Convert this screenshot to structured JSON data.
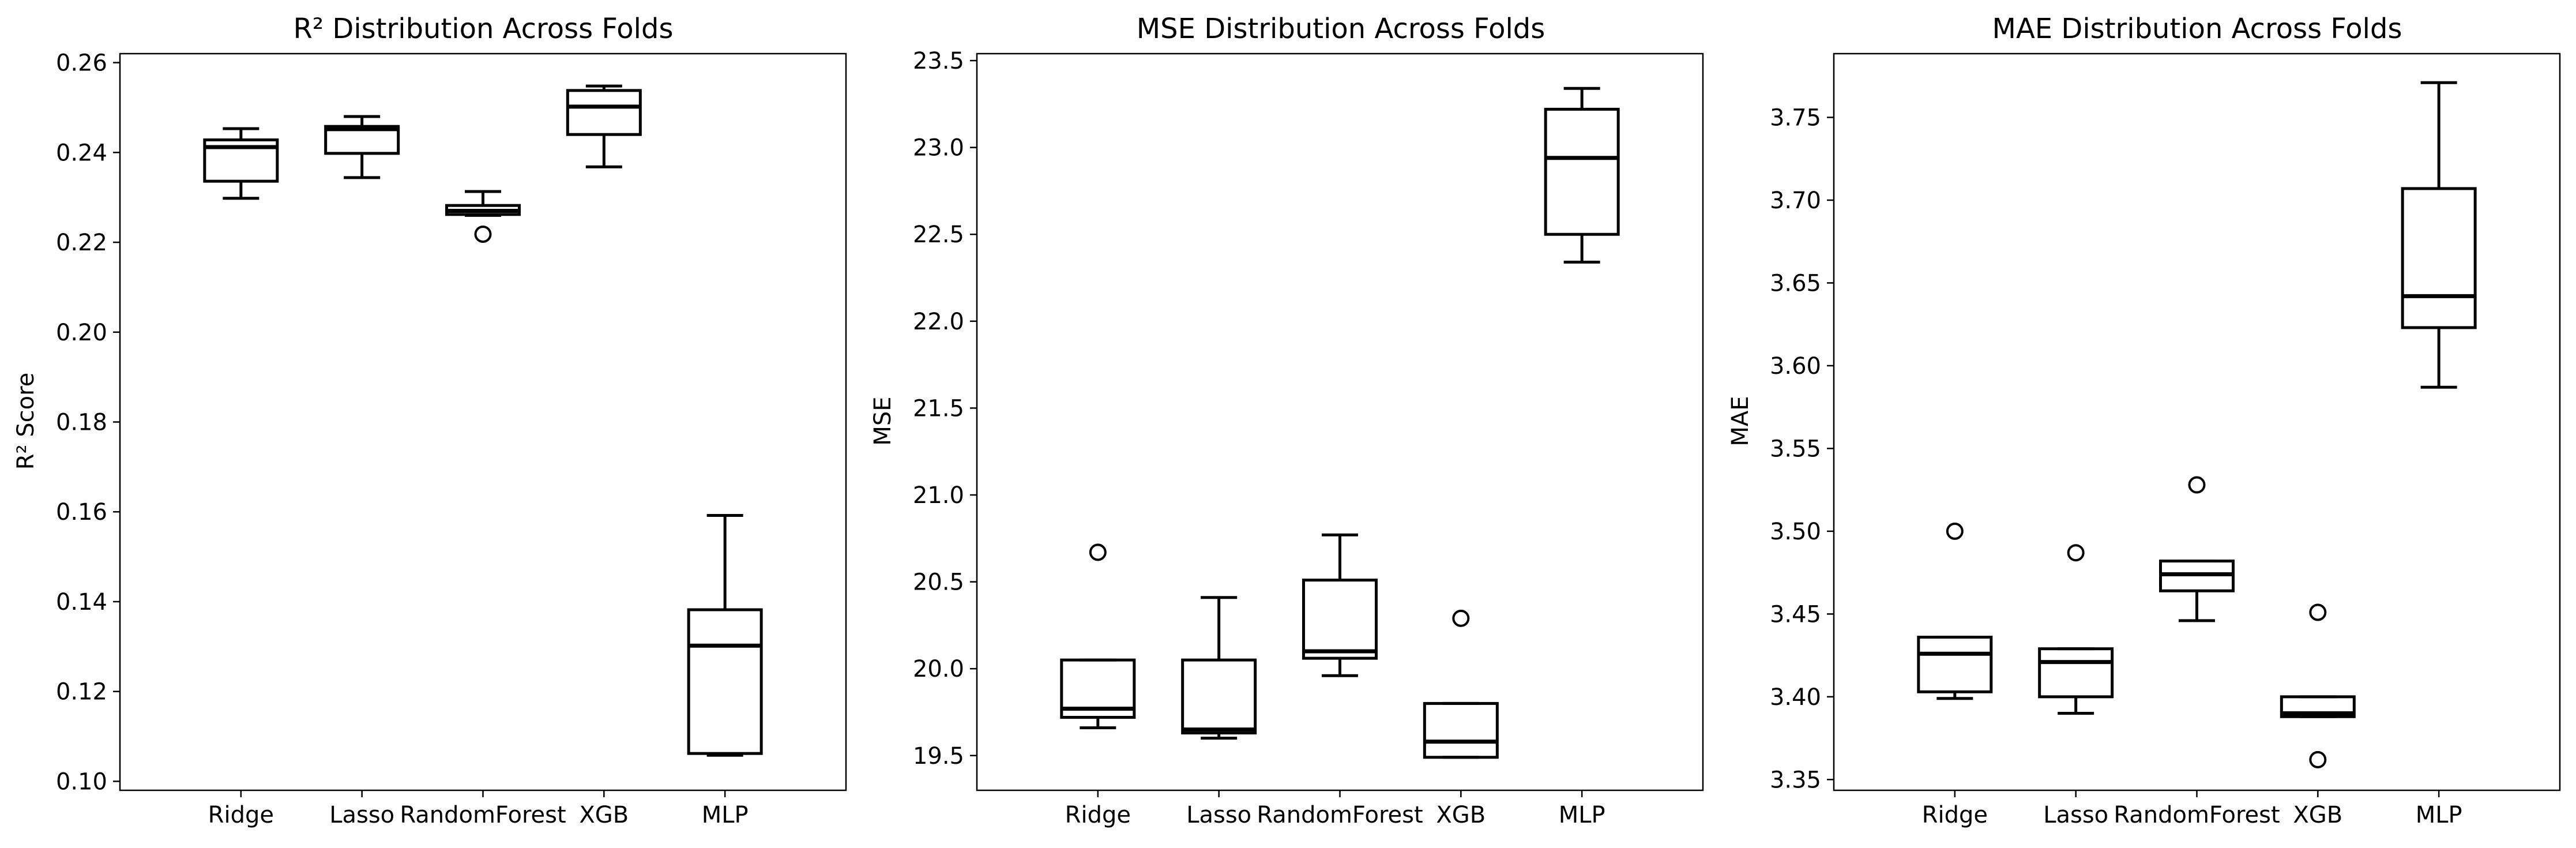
{
  "chart_data": [
    {
      "type": "box",
      "title": "R² Distribution Across Folds",
      "xlabel": "",
      "ylabel": "R² Score",
      "categories": [
        "Ridge",
        "Lasso",
        "RandomForest",
        "XGB",
        "MLP"
      ],
      "ylim": [
        0.098,
        0.262
      ],
      "yticks": [
        "0.10",
        "0.12",
        "0.14",
        "0.16",
        "0.18",
        "0.20",
        "0.22",
        "0.24",
        "0.26"
      ],
      "grid": false,
      "boxes": [
        {
          "whislo": 0.2298,
          "q1": 0.2336,
          "med": 0.2412,
          "q3": 0.2428,
          "whishi": 0.2453,
          "fliers": []
        },
        {
          "whislo": 0.2344,
          "q1": 0.2398,
          "med": 0.2452,
          "q3": 0.2458,
          "whishi": 0.248,
          "fliers": []
        },
        {
          "whislo": 0.226,
          "q1": 0.2262,
          "med": 0.227,
          "q3": 0.2282,
          "whishi": 0.2313,
          "fliers": [
            0.2218
          ]
        },
        {
          "whislo": 0.2368,
          "q1": 0.244,
          "med": 0.2502,
          "q3": 0.2538,
          "whishi": 0.2548,
          "fliers": []
        },
        {
          "whislo": 0.1058,
          "q1": 0.1062,
          "med": 0.1302,
          "q3": 0.1382,
          "whishi": 0.1592,
          "fliers": []
        }
      ]
    },
    {
      "type": "box",
      "title": "MSE Distribution Across Folds",
      "xlabel": "",
      "ylabel": "MSE",
      "categories": [
        "Ridge",
        "Lasso",
        "RandomForest",
        "XGB",
        "MLP"
      ],
      "ylim": [
        19.3,
        23.54
      ],
      "yticks": [
        "19.5",
        "20.0",
        "20.5",
        "21.0",
        "21.5",
        "22.0",
        "22.5",
        "23.0",
        "23.5"
      ],
      "grid": false,
      "boxes": [
        {
          "whislo": 19.66,
          "q1": 19.72,
          "med": 19.77,
          "q3": 20.05,
          "whishi": 20.05,
          "fliers": [
            20.67
          ]
        },
        {
          "whislo": 19.6,
          "q1": 19.63,
          "med": 19.65,
          "q3": 20.05,
          "whishi": 20.41,
          "fliers": []
        },
        {
          "whislo": 19.96,
          "q1": 20.06,
          "med": 20.1,
          "q3": 20.51,
          "whishi": 20.77,
          "fliers": []
        },
        {
          "whislo": 19.49,
          "q1": 19.49,
          "med": 19.58,
          "q3": 19.8,
          "whishi": 19.8,
          "fliers": [
            20.29
          ]
        },
        {
          "whislo": 22.34,
          "q1": 22.5,
          "med": 22.94,
          "q3": 23.22,
          "whishi": 23.34,
          "fliers": []
        }
      ]
    },
    {
      "type": "box",
      "title": "MAE Distribution Across Folds",
      "xlabel": "",
      "ylabel": "MAE",
      "categories": [
        "Ridge",
        "Lasso",
        "RandomForest",
        "XGB",
        "MLP"
      ],
      "ylim": [
        3.3435,
        3.7885
      ],
      "yticks": [
        "3.35",
        "3.40",
        "3.45",
        "3.50",
        "3.55",
        "3.60",
        "3.65",
        "3.70",
        "3.75"
      ],
      "grid": false,
      "boxes": [
        {
          "whislo": 3.399,
          "q1": 3.403,
          "med": 3.426,
          "q3": 3.436,
          "whishi": 3.436,
          "fliers": [
            3.5
          ]
        },
        {
          "whislo": 3.39,
          "q1": 3.4,
          "med": 3.421,
          "q3": 3.429,
          "whishi": 3.429,
          "fliers": [
            3.487
          ]
        },
        {
          "whislo": 3.446,
          "q1": 3.464,
          "med": 3.474,
          "q3": 3.482,
          "whishi": 3.482,
          "fliers": [
            3.528
          ]
        },
        {
          "whislo": 3.388,
          "q1": 3.388,
          "med": 3.39,
          "q3": 3.4,
          "whishi": 3.4,
          "fliers": [
            3.451,
            3.362
          ]
        },
        {
          "whislo": 3.587,
          "q1": 3.623,
          "med": 3.642,
          "q3": 3.707,
          "whishi": 3.771,
          "fliers": []
        }
      ]
    }
  ]
}
